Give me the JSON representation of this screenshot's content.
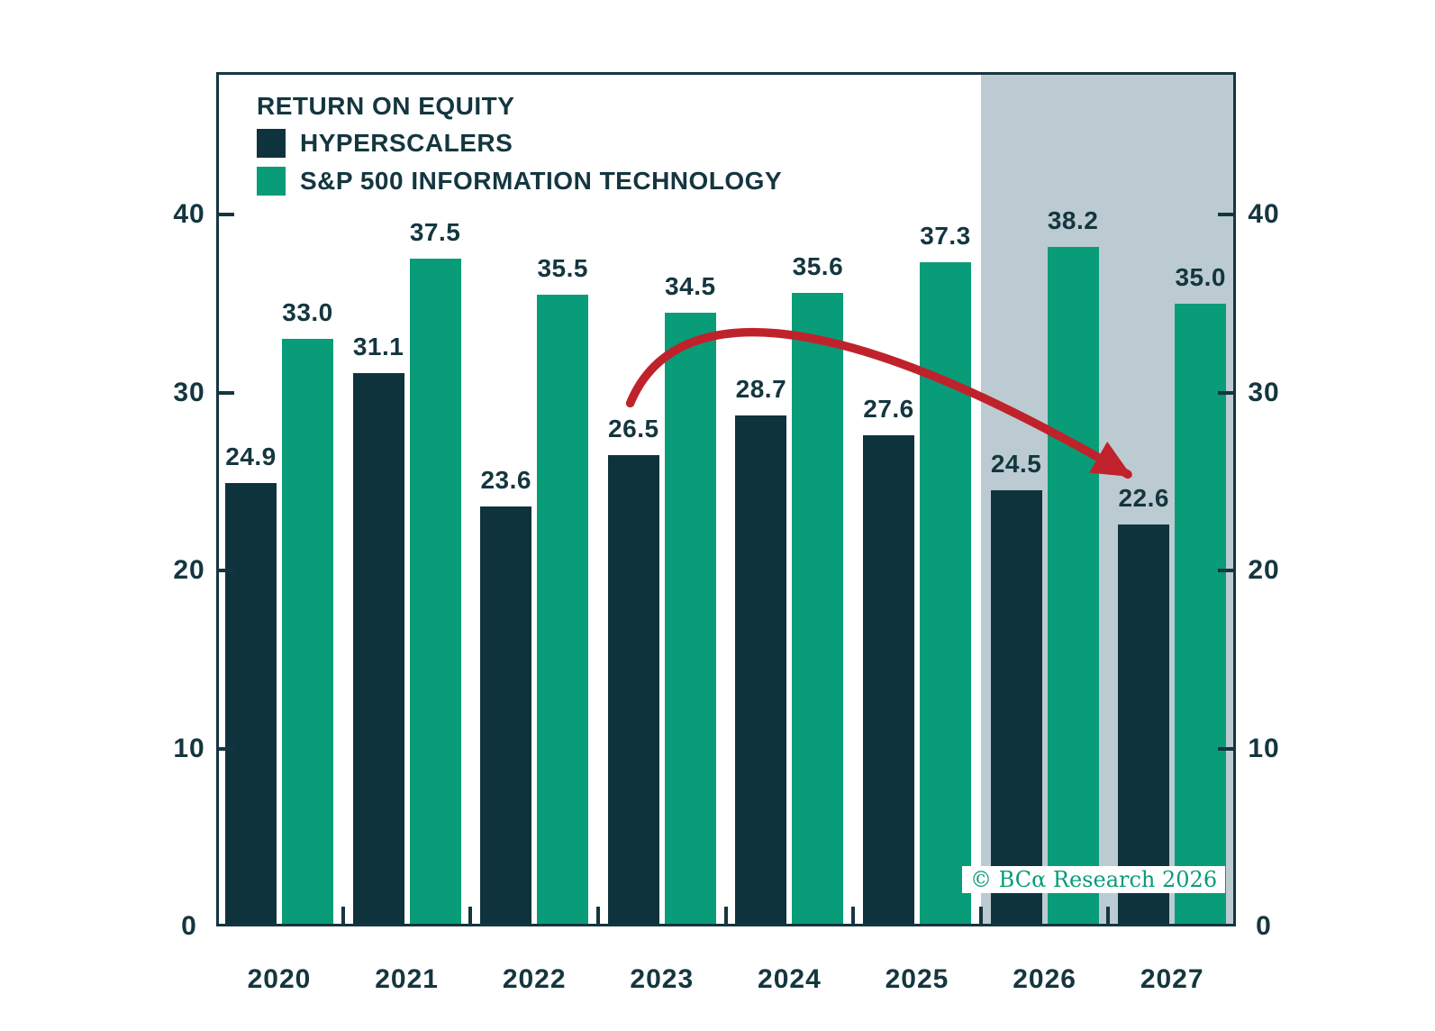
{
  "legend": {
    "title": "RETURN ON EQUITY",
    "items": [
      {
        "label": "HYPERSCALERS",
        "color": "#0f333c"
      },
      {
        "label": "S&P 500 INFORMATION TECHNOLOGY",
        "color": "#089c78"
      }
    ]
  },
  "watermark": {
    "text": "© BCα Research 2026",
    "color": "#089c78",
    "background": "#ffffff"
  },
  "colors": {
    "text": "#14363f",
    "axis": "#14363f",
    "background": "#ffffff",
    "hyperscalers_bar": "#0f333c",
    "sp500_it_bar": "#089c78",
    "forecast_shading": "#bccbd1",
    "trend_arrow": "#c0222b"
  },
  "chart_data": {
    "type": "bar",
    "title": "RETURN ON EQUITY",
    "categories": [
      "2020",
      "2021",
      "2022",
      "2023",
      "2024",
      "2025",
      "2026",
      "2027"
    ],
    "series": [
      {
        "name": "HYPERSCALERS",
        "color": "#0f333c",
        "values": [
          24.9,
          31.1,
          23.6,
          26.5,
          28.7,
          27.6,
          24.5,
          22.6
        ]
      },
      {
        "name": "S&P 500 INFORMATION TECHNOLOGY",
        "color": "#089c78",
        "values": [
          33.0,
          37.5,
          35.5,
          34.5,
          35.6,
          37.3,
          38.2,
          35.0
        ]
      }
    ],
    "value_label_decimals": 1,
    "xlabel": "",
    "ylabel": "",
    "y_ticks": [
      0,
      10,
      20,
      30,
      40
    ],
    "ylim": [
      0,
      48
    ],
    "y_axis_mirrored": true,
    "grid": false,
    "legend_position": "top-left-inside",
    "forecast_shading": {
      "categories": [
        "2026",
        "2027"
      ],
      "color": "#bccbd1"
    },
    "trend_arrow": {
      "color": "#c0222b",
      "from": {
        "x_frac": 0.406,
        "value": 29.4
      },
      "peak": {
        "x_frac": 0.528,
        "value": 33.4
      },
      "to": {
        "x_frac": 0.894,
        "value": 25.4
      }
    }
  }
}
